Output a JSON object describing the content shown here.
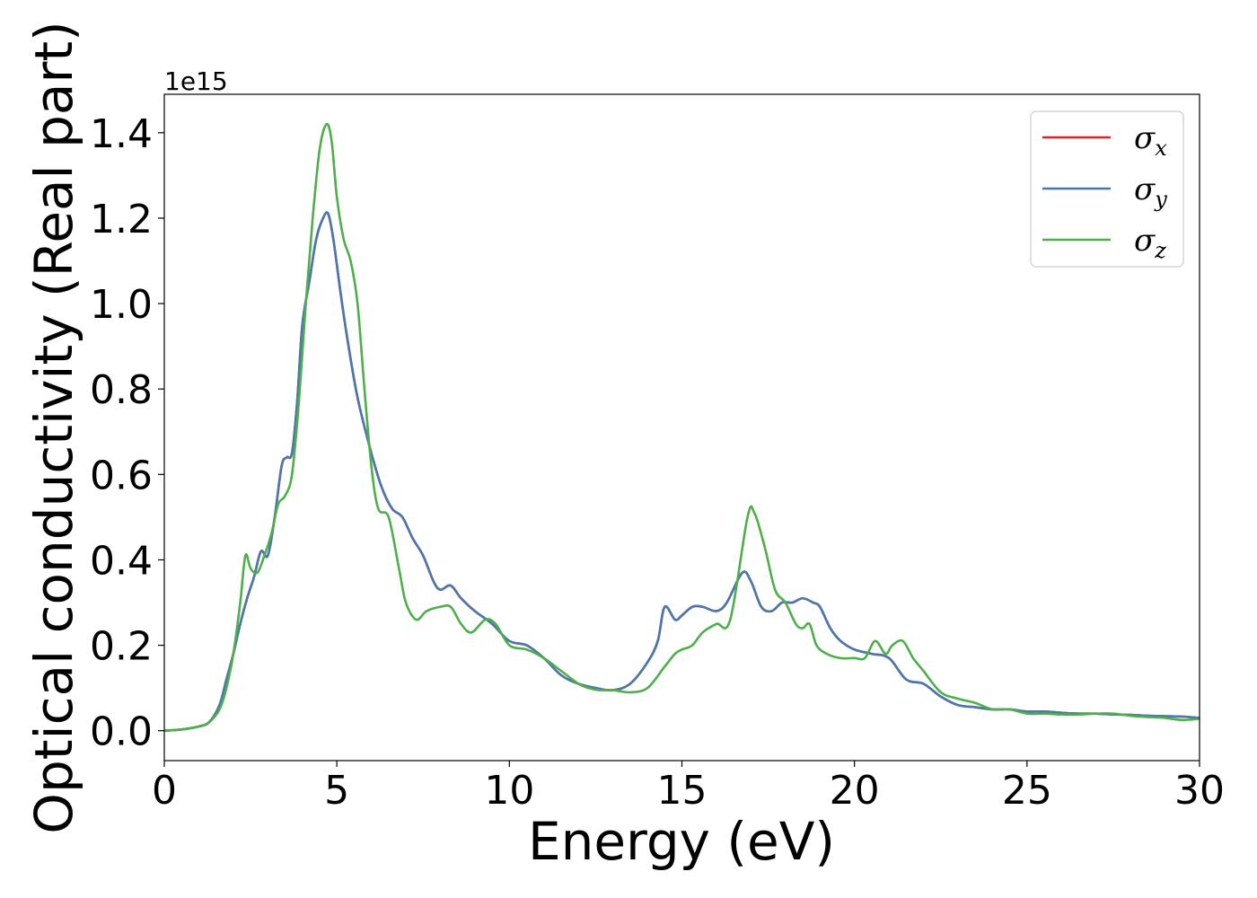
{
  "chart_data": {
    "type": "line",
    "xlabel": "Energy (eV)",
    "ylabel": "Optical conductivity (Real part)",
    "y_offset_text": "1e15",
    "y_multiplier": 1000000000000000.0,
    "xlim": [
      0,
      30
    ],
    "ylim": [
      -0.07,
      1.49
    ],
    "x_ticks": [
      0,
      5,
      10,
      15,
      20,
      25,
      30
    ],
    "x_tick_labels": [
      "0",
      "5",
      "10",
      "15",
      "20",
      "25",
      "30"
    ],
    "y_ticks": [
      0.0,
      0.2,
      0.4,
      0.6,
      0.8,
      1.0,
      1.2,
      1.4
    ],
    "y_tick_labels": [
      "0.0",
      "0.2",
      "0.4",
      "0.6",
      "0.8",
      "1.0",
      "1.2",
      "1.4"
    ],
    "grid": false,
    "legend_position": "top-right",
    "series": [
      {
        "name": "σ",
        "subscript": "x",
        "color": "#d62728",
        "x": [
          0,
          0.5,
          1,
          1.3,
          1.6,
          1.8,
          2.0,
          2.2,
          2.4,
          2.6,
          2.8,
          3.0,
          3.2,
          3.4,
          3.55,
          3.7,
          3.85,
          4.0,
          4.2,
          4.4,
          4.6,
          4.75,
          4.9,
          5.1,
          5.3,
          5.6,
          6.0,
          6.3,
          6.6,
          6.9,
          7.2,
          7.5,
          7.8,
          8.0,
          8.3,
          8.6,
          9.0,
          9.5,
          10.0,
          10.5,
          11.0,
          11.5,
          12.0,
          12.5,
          13.0,
          13.5,
          14.0,
          14.3,
          14.5,
          14.8,
          15.0,
          15.3,
          15.6,
          16.0,
          16.3,
          16.75,
          17.0,
          17.3,
          17.6,
          17.9,
          18.2,
          18.5,
          18.8,
          19.0,
          19.3,
          19.6,
          20.0,
          20.5,
          21.0,
          21.5,
          22.0,
          22.5,
          23.0,
          23.5,
          24.0,
          24.5,
          25.0,
          25.5,
          26.0,
          26.5,
          27.0,
          27.5,
          28.0,
          28.5,
          29.0,
          29.5,
          30.0
        ],
        "y": [
          0,
          0.003,
          0.01,
          0.02,
          0.06,
          0.12,
          0.18,
          0.25,
          0.31,
          0.36,
          0.42,
          0.41,
          0.5,
          0.62,
          0.64,
          0.65,
          0.77,
          0.95,
          1.05,
          1.15,
          1.2,
          1.21,
          1.15,
          1.03,
          0.92,
          0.78,
          0.65,
          0.57,
          0.52,
          0.5,
          0.45,
          0.41,
          0.35,
          0.33,
          0.34,
          0.31,
          0.28,
          0.25,
          0.21,
          0.2,
          0.17,
          0.13,
          0.11,
          0.1,
          0.095,
          0.11,
          0.16,
          0.21,
          0.29,
          0.26,
          0.27,
          0.29,
          0.29,
          0.28,
          0.3,
          0.37,
          0.35,
          0.29,
          0.28,
          0.3,
          0.3,
          0.31,
          0.3,
          0.29,
          0.24,
          0.21,
          0.19,
          0.18,
          0.17,
          0.12,
          0.11,
          0.08,
          0.06,
          0.055,
          0.05,
          0.05,
          0.045,
          0.045,
          0.042,
          0.04,
          0.04,
          0.038,
          0.037,
          0.035,
          0.034,
          0.033,
          0.03
        ]
      },
      {
        "name": "σ",
        "subscript": "y",
        "color": "#4878b0",
        "x": [
          0,
          0.5,
          1,
          1.3,
          1.6,
          1.8,
          2.0,
          2.2,
          2.4,
          2.6,
          2.8,
          3.0,
          3.2,
          3.4,
          3.55,
          3.7,
          3.85,
          4.0,
          4.2,
          4.4,
          4.6,
          4.75,
          4.9,
          5.1,
          5.3,
          5.6,
          6.0,
          6.3,
          6.6,
          6.9,
          7.2,
          7.5,
          7.8,
          8.0,
          8.3,
          8.6,
          9.0,
          9.5,
          10.0,
          10.5,
          11.0,
          11.5,
          12.0,
          12.5,
          13.0,
          13.5,
          14.0,
          14.3,
          14.5,
          14.8,
          15.0,
          15.3,
          15.6,
          16.0,
          16.3,
          16.75,
          17.0,
          17.3,
          17.6,
          17.9,
          18.2,
          18.5,
          18.8,
          19.0,
          19.3,
          19.6,
          20.0,
          20.5,
          21.0,
          21.5,
          22.0,
          22.5,
          23.0,
          23.5,
          24.0,
          24.5,
          25.0,
          25.5,
          26.0,
          26.5,
          27.0,
          27.5,
          28.0,
          28.5,
          29.0,
          29.5,
          30.0
        ],
        "y": [
          0,
          0.003,
          0.01,
          0.02,
          0.06,
          0.12,
          0.18,
          0.25,
          0.31,
          0.36,
          0.42,
          0.41,
          0.5,
          0.62,
          0.64,
          0.65,
          0.77,
          0.95,
          1.05,
          1.15,
          1.2,
          1.21,
          1.15,
          1.03,
          0.92,
          0.78,
          0.65,
          0.57,
          0.52,
          0.5,
          0.45,
          0.41,
          0.35,
          0.33,
          0.34,
          0.31,
          0.28,
          0.25,
          0.21,
          0.2,
          0.17,
          0.13,
          0.11,
          0.1,
          0.095,
          0.11,
          0.16,
          0.21,
          0.29,
          0.26,
          0.27,
          0.29,
          0.29,
          0.28,
          0.3,
          0.37,
          0.35,
          0.29,
          0.28,
          0.3,
          0.3,
          0.31,
          0.3,
          0.29,
          0.24,
          0.21,
          0.19,
          0.18,
          0.17,
          0.12,
          0.11,
          0.08,
          0.06,
          0.055,
          0.05,
          0.05,
          0.045,
          0.045,
          0.042,
          0.04,
          0.04,
          0.038,
          0.037,
          0.035,
          0.034,
          0.033,
          0.03
        ]
      },
      {
        "name": "σ",
        "subscript": "z",
        "color": "#4daf4a",
        "x": [
          0,
          0.5,
          1,
          1.3,
          1.6,
          1.8,
          2.0,
          2.2,
          2.35,
          2.5,
          2.7,
          2.9,
          3.1,
          3.3,
          3.5,
          3.7,
          3.9,
          4.1,
          4.3,
          4.5,
          4.7,
          4.85,
          5.0,
          5.2,
          5.4,
          5.6,
          5.8,
          6.0,
          6.2,
          6.5,
          6.8,
          7.0,
          7.3,
          7.6,
          8.0,
          8.3,
          8.6,
          8.9,
          9.3,
          9.6,
          10.0,
          10.5,
          11.0,
          11.5,
          12.0,
          12.3,
          12.6,
          13.0,
          13.5,
          14.0,
          14.5,
          14.8,
          15.0,
          15.3,
          15.6,
          16.0,
          16.4,
          16.9,
          17.1,
          17.4,
          17.7,
          18.0,
          18.3,
          18.5,
          18.7,
          18.9,
          19.2,
          19.6,
          20.0,
          20.3,
          20.6,
          20.9,
          21.1,
          21.4,
          21.7,
          22.0,
          22.5,
          23.0,
          23.5,
          24.0,
          24.5,
          25.0,
          25.5,
          26.0,
          26.5,
          27.0,
          27.5,
          28.0,
          28.5,
          29.0,
          29.5,
          30.0
        ],
        "y": [
          0,
          0.003,
          0.01,
          0.02,
          0.05,
          0.1,
          0.18,
          0.3,
          0.41,
          0.38,
          0.37,
          0.41,
          0.46,
          0.53,
          0.55,
          0.6,
          0.77,
          1.0,
          1.2,
          1.36,
          1.42,
          1.38,
          1.25,
          1.15,
          1.1,
          1.0,
          0.8,
          0.62,
          0.52,
          0.5,
          0.38,
          0.3,
          0.26,
          0.28,
          0.29,
          0.29,
          0.25,
          0.23,
          0.26,
          0.25,
          0.2,
          0.19,
          0.17,
          0.14,
          0.11,
          0.1,
          0.095,
          0.095,
          0.09,
          0.1,
          0.15,
          0.18,
          0.19,
          0.2,
          0.23,
          0.25,
          0.26,
          0.5,
          0.51,
          0.43,
          0.33,
          0.3,
          0.25,
          0.24,
          0.25,
          0.2,
          0.18,
          0.17,
          0.17,
          0.17,
          0.21,
          0.18,
          0.2,
          0.21,
          0.17,
          0.14,
          0.09,
          0.075,
          0.065,
          0.05,
          0.05,
          0.04,
          0.04,
          0.038,
          0.038,
          0.04,
          0.04,
          0.035,
          0.032,
          0.03,
          0.025,
          0.028
        ]
      }
    ]
  }
}
